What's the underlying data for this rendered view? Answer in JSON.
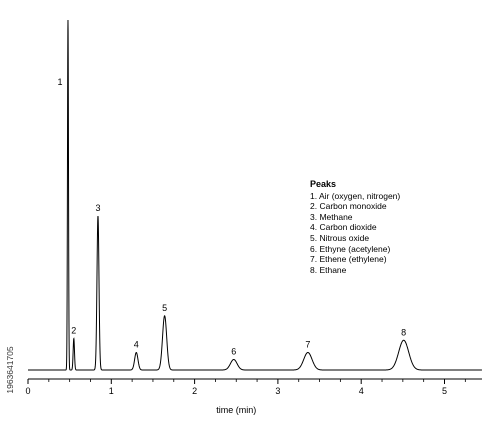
{
  "chart_data": {
    "type": "line",
    "title": "",
    "xlabel": "time (min)",
    "ylabel": "",
    "xlim": [
      0,
      5.45
    ],
    "ylim": [
      0,
      1
    ],
    "xticks": [
      "0",
      "1",
      "2",
      "3",
      "4",
      "5"
    ],
    "grid": false,
    "peaks": [
      {
        "label": "1",
        "x": 0.48,
        "height": 1.0,
        "width": 0.006
      },
      {
        "label": "2",
        "x": 0.55,
        "height": 0.09,
        "width": 0.008
      },
      {
        "label": "3",
        "x": 0.84,
        "height": 0.44,
        "width": 0.012
      },
      {
        "label": "4",
        "x": 1.3,
        "height": 0.05,
        "width": 0.02
      },
      {
        "label": "5",
        "x": 1.64,
        "height": 0.155,
        "width": 0.025
      },
      {
        "label": "6",
        "x": 2.47,
        "height": 0.03,
        "width": 0.04
      },
      {
        "label": "7",
        "x": 3.36,
        "height": 0.05,
        "width": 0.05
      },
      {
        "label": "8",
        "x": 4.51,
        "height": 0.085,
        "width": 0.06
      }
    ],
    "legend": {
      "title": "Peaks",
      "placement": "right",
      "items": [
        "1. Air (oxygen, nitrogen)",
        "2. Carbon monoxide",
        "3. Methane",
        "4. Carbon dioxide",
        "5. Nitrous oxide",
        "6. Ethyne (acetylene)",
        "7. Ethene (ethylene)",
        "8. Ethane"
      ]
    }
  },
  "stock_id": "1963641705"
}
